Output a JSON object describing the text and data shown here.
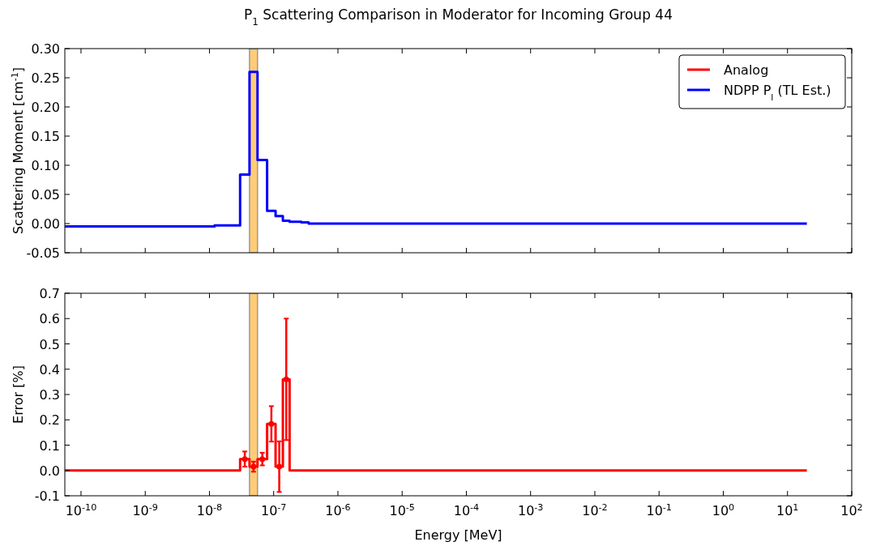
{
  "chart_data": [
    {
      "type": "step",
      "title": "P$_{1}$ Scattering Comparison in Moderator for Incoming Group 44",
      "ylabel": "Scattering Moment [cm$^{-1}$]",
      "series": [
        {
          "name": "Analog",
          "color": "#ff0000"
        },
        {
          "name": "NDPP P$_{l}$ (TL Est.)",
          "color": "#0000ff",
          "x": [
            5.6e-11,
            1.2e-08,
            3e-08,
            4.2e-08,
            5.6e-08,
            7.9e-08,
            1.07e-07,
            1.39e-07,
            1.77e-07,
            2.7e-07,
            3.5e-07,
            20
          ],
          "values": [
            -0.005,
            -0.003,
            0.084,
            0.26,
            0.109,
            0.022,
            0.013,
            0.005,
            0.003,
            0.002,
            0.0,
            0.0
          ]
        }
      ],
      "log": "x",
      "xlim": [
        5.6e-11,
        100
      ],
      "xticks": [
        {
          "value": 1e-10,
          "label": null
        },
        {
          "value": 1e-09,
          "label": null
        },
        {
          "value": 1e-08,
          "label": null
        },
        {
          "value": 1e-07,
          "label": null
        },
        {
          "value": 1e-06,
          "label": null
        },
        {
          "value": 1e-05,
          "label": null
        },
        {
          "value": 0.0001,
          "label": null
        },
        {
          "value": 0.001,
          "label": null
        },
        {
          "value": 0.01,
          "label": null
        },
        {
          "value": 0.1,
          "label": null
        },
        {
          "value": 1,
          "label": null
        },
        {
          "value": 10,
          "label": null
        },
        {
          "value": 100,
          "label": null
        }
      ],
      "ylim": [
        -0.05,
        0.3
      ],
      "yticks": [
        {
          "value": -0.05,
          "label": "-0.05"
        },
        {
          "value": 0,
          "label": "0.00"
        },
        {
          "value": 0.05,
          "label": "0.05"
        },
        {
          "value": 0.1,
          "label": "0.10"
        },
        {
          "value": 0.15,
          "label": "0.15"
        },
        {
          "value": 0.2,
          "label": "0.20"
        },
        {
          "value": 0.25,
          "label": "0.25"
        },
        {
          "value": 0.3,
          "label": "0.30"
        }
      ],
      "bands": [
        {
          "axis": "x",
          "from": 4.2e-08,
          "to": 5.6e-08,
          "color": "#ffcc77"
        }
      ],
      "legend": "top right",
      "tick_labels": "y"
    },
    {
      "type": "step",
      "xlabel": "Energy [MeV]",
      "ylabel": "Error [%]",
      "series": [
        {
          "color": "#ff0000",
          "x": [
            5.6e-11,
            3e-08,
            4.2e-08,
            5.6e-08,
            7.9e-08,
            1.07e-07,
            1.39e-07,
            1.77e-07,
            20
          ],
          "values": [
            0,
            0.045,
            0.015,
            0.045,
            0.184,
            0.015,
            0.36,
            0,
            0
          ]
        },
        {
          "type": "scatter",
          "color": "#ff0000",
          "x": [
            3.55e-08,
            4.85e-08,
            6.65e-08,
            9.2e-08,
            1.22e-07,
            1.57e-07
          ],
          "values": [
            0.045,
            0.015,
            0.045,
            0.184,
            0.015,
            0.36
          ],
          "errors": [
            0.03,
            0.02,
            0.025,
            0.07,
            0.1,
            0.24
          ]
        }
      ],
      "log": "x",
      "xlim": [
        5.6e-11,
        100
      ],
      "xticks": [
        {
          "value": 1e-10,
          "label": "10$^{-10}$"
        },
        {
          "value": 1e-09,
          "label": "10$^{-9}$"
        },
        {
          "value": 1e-08,
          "label": "10$^{-8}$"
        },
        {
          "value": 1e-07,
          "label": "10$^{-7}$"
        },
        {
          "value": 1e-06,
          "label": "10$^{-6}$"
        },
        {
          "value": 1e-05,
          "label": "10$^{-5}$"
        },
        {
          "value": 0.0001,
          "label": "10$^{-4}$"
        },
        {
          "value": 0.001,
          "label": "10$^{-3}$"
        },
        {
          "value": 0.01,
          "label": "10$^{-2}$"
        },
        {
          "value": 0.1,
          "label": "10$^{-1}$"
        },
        {
          "value": 1,
          "label": "10$^{0}$"
        },
        {
          "value": 10,
          "label": "10$^{1}$"
        },
        {
          "value": 100,
          "label": "10$^{2}$"
        }
      ],
      "ylim": [
        -0.1,
        0.7
      ],
      "yticks": [
        {
          "value": -0.1,
          "label": "-0.1"
        },
        {
          "value": 0,
          "label": "0.0"
        },
        {
          "value": 0.1,
          "label": "0.1"
        },
        {
          "value": 0.2,
          "label": "0.2"
        },
        {
          "value": 0.3,
          "label": "0.3"
        },
        {
          "value": 0.4,
          "label": "0.4"
        },
        {
          "value": 0.5,
          "label": "0.5"
        },
        {
          "value": 0.6,
          "label": "0.6"
        },
        {
          "value": 0.7,
          "label": "0.7"
        }
      ],
      "bands": [
        {
          "axis": "x",
          "from": 4.2e-08,
          "to": 5.6e-08,
          "color": "#ffcc77"
        }
      ]
    }
  ]
}
